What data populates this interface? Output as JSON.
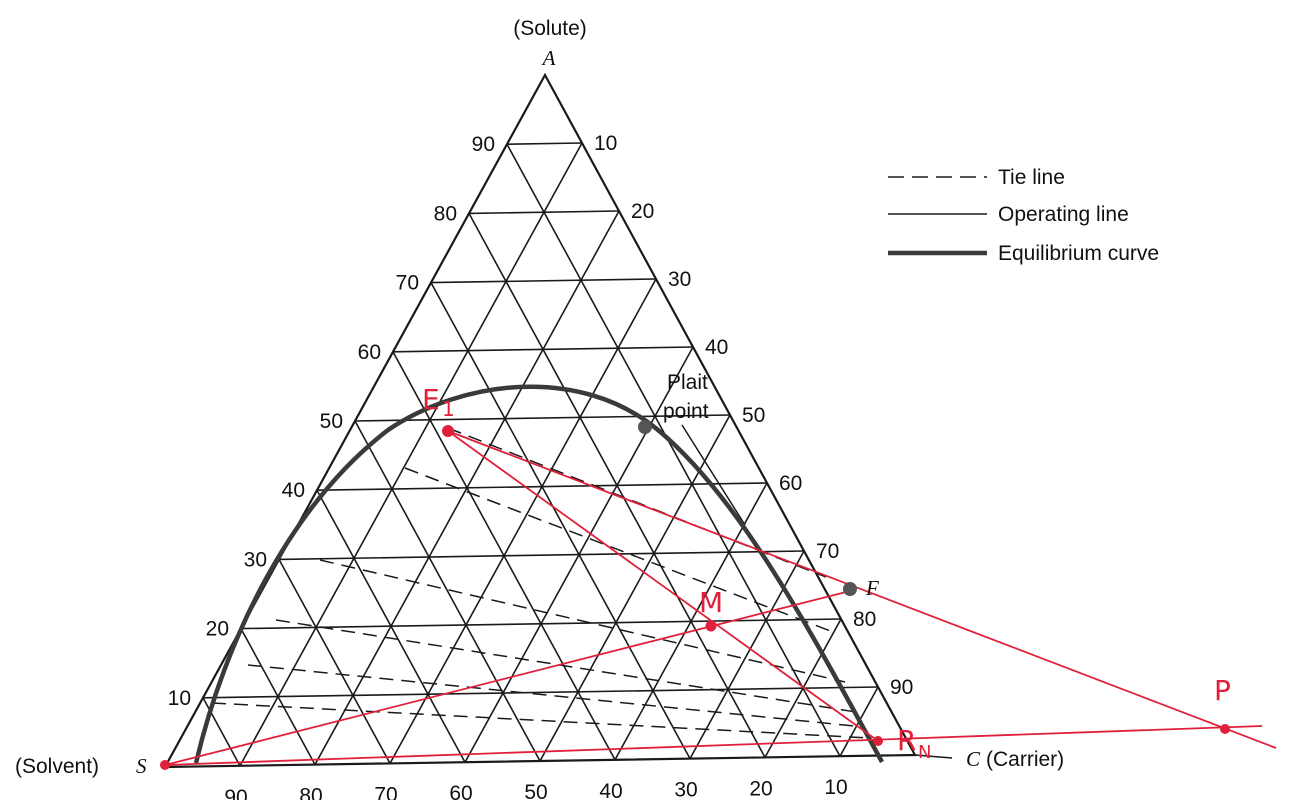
{
  "labels": {
    "top_header": "(Solute)",
    "apex_a": "A",
    "solvent_text": "(Solvent)",
    "solvent_letter": "S",
    "carrier_letter": "C",
    "carrier_text": "(Carrier)",
    "plait_line1": "Plait",
    "plait_line2": "point",
    "feed_label": "F"
  },
  "legend": {
    "tie_line": "Tie line",
    "operating_line": "Operating line",
    "equilibrium_curve": "Equilibrium curve"
  },
  "left_scale": [
    "90",
    "80",
    "70",
    "60",
    "50",
    "40",
    "30",
    "20",
    "10"
  ],
  "right_scale": [
    "10",
    "20",
    "30",
    "40",
    "50",
    "60",
    "70",
    "80",
    "90"
  ],
  "bottom_scale": [
    "90",
    "80",
    "70",
    "60",
    "50",
    "40",
    "30",
    "20",
    "10"
  ],
  "annotations": {
    "extract_label": "E",
    "extract_subscript": "1",
    "mix_label": "M",
    "raffinate_label": "R",
    "raffinate_subscript": "N",
    "difference_label": "P"
  },
  "colors": {
    "grid": "#1a1a1a",
    "equilibrium_curve": "#3a3a3a",
    "annotation_red": "#e0203a",
    "marker_gray": "#555555"
  }
}
